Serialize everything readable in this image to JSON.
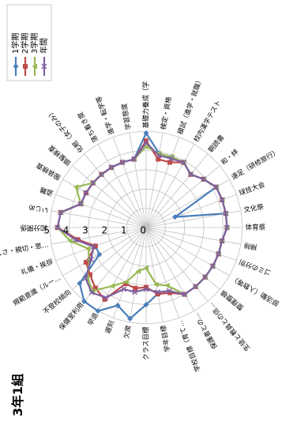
{
  "chart_data": {
    "type": "radar",
    "title": "3年1組",
    "categories": [
      "知分関係",
      "いじめ",
      "盗難",
      "服装検査",
      "頭髪検査",
      "化粧（女子のみ）",
      "落ち着き度",
      "進学・転学等",
      "学習態度",
      "基礎力養成（学",
      "検定・資格",
      "模試（進学・就職）",
      "校内漢字テスト",
      "朝読書",
      "和・絆",
      "遠足（研修旅行）",
      "球技大会",
      "文化祭",
      "体育祭",
      "掃除",
      "ゴミの分別",
      "部活動（人数等）",
      "整理整頓",
      "生徒と教員との信…",
      "保護者との…",
      "学校目標（育て…",
      "学年目標",
      "クラス目標",
      "欠席",
      "遅刻",
      "早退",
      "保健室利用",
      "不登校傾向",
      "規範意識（ルー…",
      "礼儀・挨拶",
      "優しさ・親切・思…"
    ],
    "rlim": [
      0,
      5
    ],
    "ticks": [
      0,
      1,
      2,
      3,
      4,
      5
    ],
    "tick_labels": [
      "0",
      "1",
      "2",
      "3",
      "4",
      "5"
    ],
    "series": [
      {
        "name": "1学期",
        "color": "#4a7ebb",
        "marker": "diamond",
        "values": [
          4.6,
          4.5,
          3.6,
          3.6,
          3.6,
          3.6,
          3.6,
          3.6,
          3.6,
          4.9,
          3.9,
          3.9,
          3.9,
          3.6,
          3.9,
          4.2,
          1.6,
          4.2,
          4.2,
          4.0,
          4.0,
          4.0,
          4.0,
          4.0,
          4.0,
          3.6,
          3.5,
          4.0,
          4.8,
          4.3,
          5.0,
          5.0,
          4.5,
          2.8,
          2.8,
          3.6
        ]
      },
      {
        "name": "2学期",
        "color": "#be4b48",
        "marker": "square",
        "values": [
          4.6,
          4.5,
          3.6,
          3.6,
          3.6,
          3.6,
          3.6,
          3.6,
          3.6,
          4.5,
          3.6,
          3.6,
          3.9,
          3.6,
          3.9,
          4.2,
          4.2,
          4.2,
          4.2,
          4.0,
          4.0,
          4.0,
          4.0,
          4.0,
          4.0,
          3.6,
          3.5,
          3.1,
          3.2,
          3.1,
          4.3,
          4.1,
          3.8,
          3.6,
          2.8,
          3.6
        ]
      },
      {
        "name": "3学期",
        "color": "#98b954",
        "marker": "triangle",
        "values": [
          4.6,
          4.5,
          3.6,
          4.2,
          3.6,
          3.6,
          3.6,
          3.6,
          3.6,
          4.2,
          3.9,
          3.9,
          3.9,
          3.6,
          3.9,
          4.2,
          4.2,
          4.2,
          4.2,
          4.0,
          4.0,
          4.0,
          4.0,
          4.0,
          4.0,
          3.2,
          3.0,
          2.1,
          2.3,
          3.0,
          3.5,
          4.3,
          4.0,
          3.4,
          3.2,
          4.0
        ]
      },
      {
        "name": "年間",
        "color": "#7d60a0",
        "marker": "x",
        "values": [
          4.6,
          4.5,
          3.6,
          3.6,
          3.6,
          3.6,
          3.6,
          3.6,
          3.6,
          4.4,
          3.8,
          3.8,
          3.9,
          3.6,
          3.9,
          4.2,
          4.2,
          4.2,
          4.2,
          4.0,
          4.0,
          4.0,
          4.0,
          4.0,
          4.0,
          3.5,
          3.4,
          3.2,
          3.4,
          3.4,
          4.2,
          4.4,
          4.1,
          3.3,
          2.9,
          3.7
        ]
      }
    ],
    "legend": "top-left",
    "grid": true
  }
}
